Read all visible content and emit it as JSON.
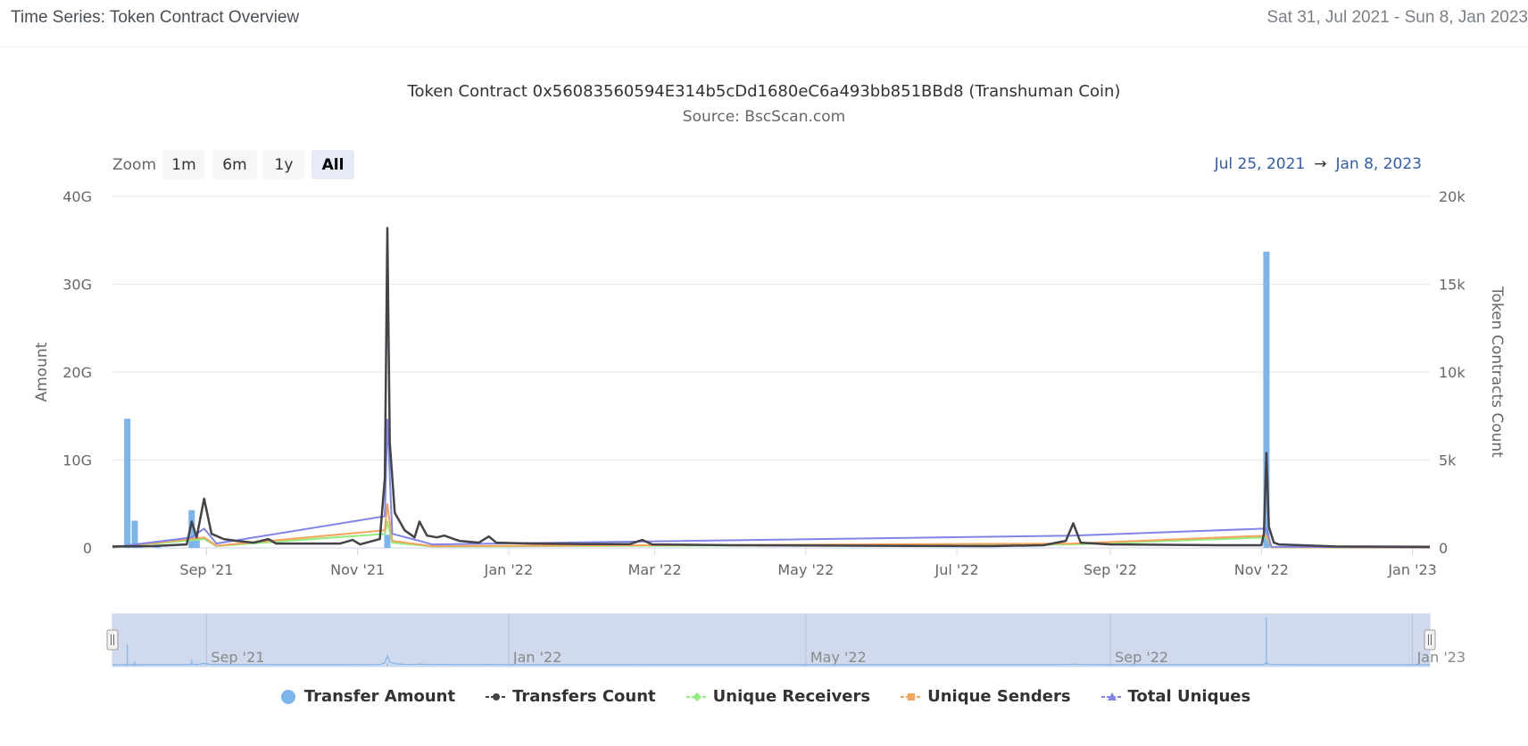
{
  "header": {
    "title": "Time Series: Token Contract Overview",
    "date_range": "Sat 31, Jul 2021 - Sun 8, Jan 2023"
  },
  "toolbar": {
    "zoom_label": "Zoom",
    "zoom_buttons": [
      "1m",
      "6m",
      "1y",
      "All"
    ],
    "active_zoom": "All",
    "range_from": "Jul 25, 2021",
    "range_arrow": "→",
    "range_to": "Jan 8, 2023"
  },
  "colors": {
    "transfer_amount": "#7cb5ec",
    "transfers_count": "#434348",
    "unique_receivers": "#90ed7d",
    "unique_senders": "#f7a35c",
    "total_uniques": "#8085e9",
    "navigator_mask": "#ccd6eb"
  },
  "chart_data": {
    "type": "line",
    "title": "Token Contract 0x56083560594E314b5cDd1680eC6a493bb851BBd8 (Transhuman Coin)",
    "subtitle": "Source: BscScan.com",
    "x_range": [
      "2021-07-25",
      "2023-01-08"
    ],
    "x_ticks": [
      {
        "date": "2021-09-01",
        "label": "Sep '21"
      },
      {
        "date": "2021-11-01",
        "label": "Nov '21"
      },
      {
        "date": "2022-01-01",
        "label": "Jan '22"
      },
      {
        "date": "2022-03-01",
        "label": "Mar '22"
      },
      {
        "date": "2022-05-01",
        "label": "May '22"
      },
      {
        "date": "2022-07-01",
        "label": "Jul '22"
      },
      {
        "date": "2022-09-01",
        "label": "Sep '22"
      },
      {
        "date": "2022-11-01",
        "label": "Nov '22"
      },
      {
        "date": "2023-01-01",
        "label": "Jan '23"
      }
    ],
    "navigator_ticks": [
      {
        "date": "2021-09-01",
        "label": "Sep '21"
      },
      {
        "date": "2022-01-01",
        "label": "Jan '22"
      },
      {
        "date": "2022-05-01",
        "label": "May '22"
      },
      {
        "date": "2022-09-01",
        "label": "Sep '22"
      },
      {
        "date": "2023-01-01",
        "label": "Jan '23"
      }
    ],
    "y_left": {
      "label": "Amount",
      "min": 0,
      "max": 40000000000,
      "ticks": [
        0,
        10000000000,
        20000000000,
        30000000000,
        40000000000
      ],
      "tick_labels": [
        "0",
        "10G",
        "20G",
        "30G",
        "40G"
      ]
    },
    "y_right": {
      "label": "Token Contracts Count",
      "min": 0,
      "max": 20000,
      "ticks": [
        0,
        5000,
        10000,
        15000,
        20000
      ],
      "tick_labels": [
        "0",
        "5k",
        "10k",
        "15k",
        "20k"
      ]
    },
    "legend": [
      "Transfer Amount",
      "Transfers Count",
      "Unique Receivers",
      "Unique Senders",
      "Total Uniques"
    ],
    "series": [
      {
        "name": "Transfer Amount",
        "type": "column",
        "axis": "left",
        "points": [
          [
            "2021-07-31",
            14700000000
          ],
          [
            "2021-08-03",
            3100000000
          ],
          [
            "2021-08-05",
            500000000
          ],
          [
            "2021-08-12",
            200000000
          ],
          [
            "2021-08-26",
            4300000000
          ],
          [
            "2021-08-28",
            1200000000
          ],
          [
            "2021-11-13",
            1500000000
          ],
          [
            "2022-11-03",
            33700000000
          ]
        ]
      },
      {
        "name": "Transfers Count",
        "type": "line",
        "axis": "right",
        "points": [
          [
            "2021-07-25",
            80
          ],
          [
            "2021-08-10",
            100
          ],
          [
            "2021-08-24",
            200
          ],
          [
            "2021-08-26",
            1500
          ],
          [
            "2021-08-28",
            600
          ],
          [
            "2021-08-31",
            2800
          ],
          [
            "2021-09-03",
            800
          ],
          [
            "2021-09-08",
            500
          ],
          [
            "2021-09-13",
            400
          ],
          [
            "2021-09-20",
            300
          ],
          [
            "2021-09-26",
            500
          ],
          [
            "2021-09-29",
            250
          ],
          [
            "2021-10-10",
            250
          ],
          [
            "2021-10-25",
            250
          ],
          [
            "2021-10-30",
            450
          ],
          [
            "2021-11-02",
            200
          ],
          [
            "2021-11-10",
            500
          ],
          [
            "2021-11-12",
            4000
          ],
          [
            "2021-11-13",
            18200
          ],
          [
            "2021-11-14",
            6000
          ],
          [
            "2021-11-16",
            2000
          ],
          [
            "2021-11-20",
            1000
          ],
          [
            "2021-11-24",
            600
          ],
          [
            "2021-11-26",
            1500
          ],
          [
            "2021-11-29",
            700
          ],
          [
            "2021-12-03",
            600
          ],
          [
            "2021-12-06",
            700
          ],
          [
            "2021-12-12",
            400
          ],
          [
            "2021-12-20",
            300
          ],
          [
            "2021-12-24",
            650
          ],
          [
            "2021-12-27",
            300
          ],
          [
            "2022-01-10",
            250
          ],
          [
            "2022-02-01",
            220
          ],
          [
            "2022-02-19",
            220
          ],
          [
            "2022-02-24",
            450
          ],
          [
            "2022-02-28",
            200
          ],
          [
            "2022-04-01",
            150
          ],
          [
            "2022-06-01",
            120
          ],
          [
            "2022-07-15",
            100
          ],
          [
            "2022-08-05",
            150
          ],
          [
            "2022-08-14",
            400
          ],
          [
            "2022-08-17",
            1400
          ],
          [
            "2022-08-20",
            300
          ],
          [
            "2022-09-01",
            200
          ],
          [
            "2022-10-15",
            150
          ],
          [
            "2022-11-01",
            150
          ],
          [
            "2022-11-02",
            800
          ],
          [
            "2022-11-03",
            5400
          ],
          [
            "2022-11-04",
            1200
          ],
          [
            "2022-11-06",
            300
          ],
          [
            "2022-11-08",
            200
          ],
          [
            "2022-12-01",
            80
          ],
          [
            "2023-01-08",
            60
          ]
        ]
      },
      {
        "name": "Unique Receivers",
        "type": "line",
        "axis": "right",
        "points": [
          [
            "2021-07-25",
            20
          ],
          [
            "2021-08-31",
            500
          ],
          [
            "2021-09-05",
            100
          ],
          [
            "2021-11-12",
            800
          ],
          [
            "2021-11-13",
            1500
          ],
          [
            "2021-11-15",
            300
          ],
          [
            "2021-12-01",
            80
          ],
          [
            "2022-08-17",
            200
          ],
          [
            "2022-11-03",
            600
          ],
          [
            "2022-11-05",
            30
          ],
          [
            "2023-01-08",
            10
          ]
        ]
      },
      {
        "name": "Unique Senders",
        "type": "line",
        "axis": "right",
        "points": [
          [
            "2021-07-25",
            20
          ],
          [
            "2021-08-31",
            600
          ],
          [
            "2021-09-05",
            120
          ],
          [
            "2021-11-12",
            1000
          ],
          [
            "2021-11-13",
            2500
          ],
          [
            "2021-11-15",
            400
          ],
          [
            "2021-12-01",
            100
          ],
          [
            "2022-08-17",
            250
          ],
          [
            "2022-11-03",
            700
          ],
          [
            "2022-11-05",
            30
          ],
          [
            "2023-01-08",
            10
          ]
        ]
      },
      {
        "name": "Total Uniques",
        "type": "line",
        "axis": "right",
        "points": [
          [
            "2021-07-25",
            40
          ],
          [
            "2021-08-26",
            600
          ],
          [
            "2021-08-31",
            1100
          ],
          [
            "2021-09-05",
            250
          ],
          [
            "2021-11-12",
            1800
          ],
          [
            "2021-11-13",
            7300
          ],
          [
            "2021-11-15",
            800
          ],
          [
            "2021-11-26",
            400
          ],
          [
            "2021-12-01",
            200
          ],
          [
            "2022-08-17",
            700
          ],
          [
            "2022-11-03",
            1100
          ],
          [
            "2022-11-05",
            60
          ],
          [
            "2023-01-08",
            30
          ]
        ]
      }
    ]
  }
}
